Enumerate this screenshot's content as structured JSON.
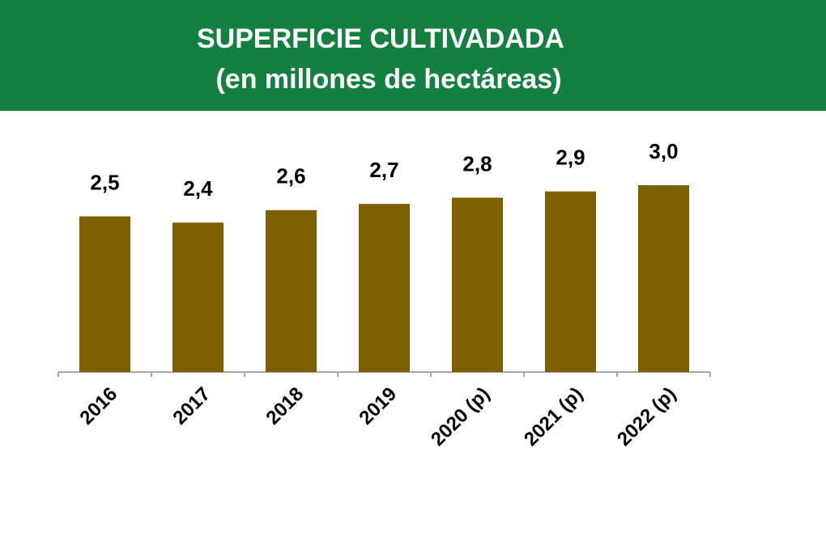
{
  "chart_data": {
    "type": "bar",
    "title": "SUPERFICIE CULTIVADADA",
    "subtitle": "(en millones de hectáreas)",
    "categories": [
      "2016",
      "2017",
      "2018",
      "2019",
      "2020 (p)",
      "2021 (p)",
      "2022 (p)"
    ],
    "values": [
      2.5,
      2.4,
      2.6,
      2.7,
      2.8,
      2.9,
      3.0
    ],
    "value_labels": [
      "2,5",
      "2,4",
      "2,6",
      "2,7",
      "2,8",
      "2,9",
      "3,0"
    ],
    "color": "#7f6000"
  }
}
